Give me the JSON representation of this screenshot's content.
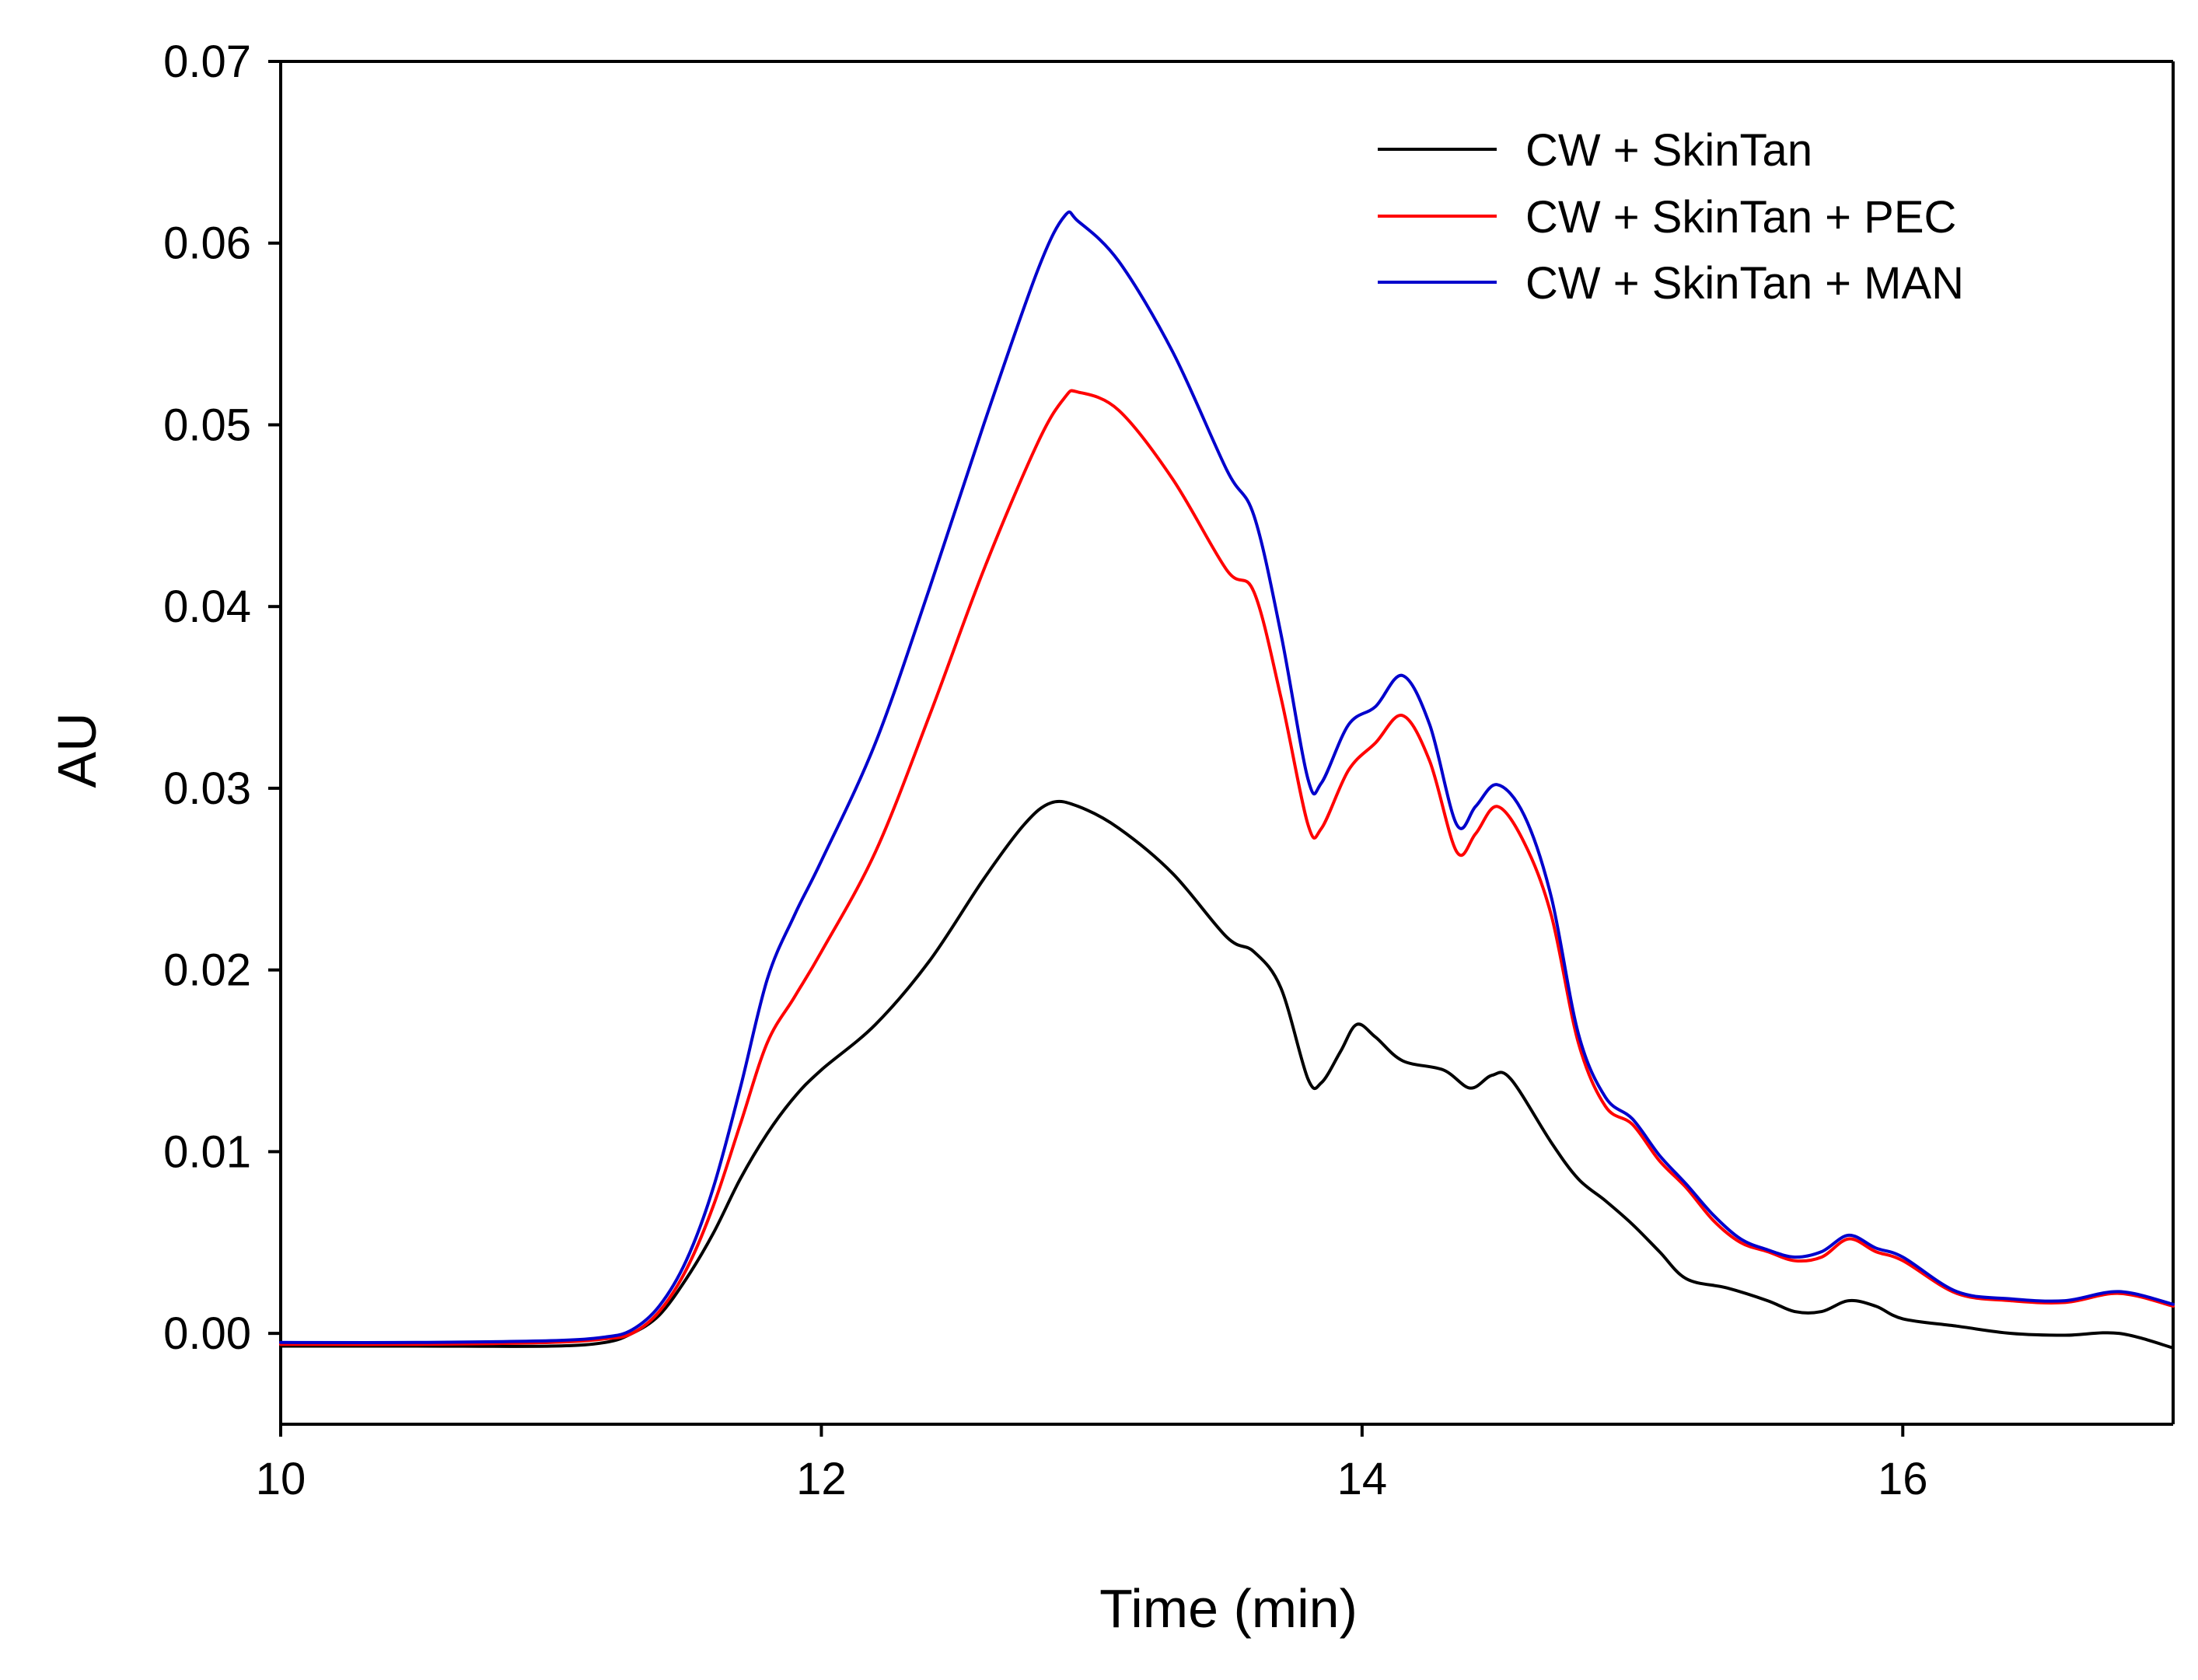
{
  "chart_data": {
    "type": "line",
    "title": "",
    "xlabel": "Time (min)",
    "ylabel": "AU",
    "xlim": [
      10,
      17
    ],
    "ylim": [
      -0.005,
      0.07
    ],
    "xticks": [
      10,
      12,
      14,
      16
    ],
    "xtick_labels": [
      "10",
      "12",
      "14",
      "16"
    ],
    "yticks": [
      0,
      0.01,
      0.02,
      0.03,
      0.04,
      0.05,
      0.06,
      0.07
    ],
    "ytick_labels": [
      "0.00",
      "0.01",
      "0.02",
      "0.03",
      "0.04",
      "0.05",
      "0.06",
      "0.07"
    ],
    "grid": false,
    "legend_position": "top-right",
    "series": [
      {
        "name": "CW + SkinTan",
        "color": "#000000",
        "points": [
          [
            10,
            -0.0007
          ],
          [
            10.5,
            -0.0007
          ],
          [
            11,
            -0.0007
          ],
          [
            11.2,
            -0.0005
          ],
          [
            11.3,
            0.0
          ],
          [
            11.4,
            0.001
          ],
          [
            11.5,
            0.003
          ],
          [
            11.6,
            0.0055
          ],
          [
            11.7,
            0.0085
          ],
          [
            11.8,
            0.011
          ],
          [
            11.9,
            0.013
          ],
          [
            12.0,
            0.0145
          ],
          [
            12.2,
            0.017
          ],
          [
            12.4,
            0.0205
          ],
          [
            12.6,
            0.025
          ],
          [
            12.75,
            0.028
          ],
          [
            12.85,
            0.0292
          ],
          [
            12.95,
            0.029
          ],
          [
            13.1,
            0.0278
          ],
          [
            13.3,
            0.0253
          ],
          [
            13.5,
            0.0218
          ],
          [
            13.6,
            0.021
          ],
          [
            13.7,
            0.019
          ],
          [
            13.8,
            0.014
          ],
          [
            13.85,
            0.0138
          ],
          [
            13.92,
            0.0155
          ],
          [
            13.98,
            0.017
          ],
          [
            14.05,
            0.0163
          ],
          [
            14.15,
            0.015
          ],
          [
            14.3,
            0.0145
          ],
          [
            14.4,
            0.0135
          ],
          [
            14.48,
            0.0142
          ],
          [
            14.55,
            0.014
          ],
          [
            14.7,
            0.0105
          ],
          [
            14.8,
            0.0085
          ],
          [
            14.9,
            0.0073
          ],
          [
            15.0,
            0.006
          ],
          [
            15.1,
            0.0045
          ],
          [
            15.2,
            0.003
          ],
          [
            15.35,
            0.0025
          ],
          [
            15.5,
            0.0018
          ],
          [
            15.6,
            0.0012
          ],
          [
            15.7,
            0.0012
          ],
          [
            15.8,
            0.0018
          ],
          [
            15.9,
            0.0015
          ],
          [
            16.0,
            0.0008
          ],
          [
            16.2,
            0.0004
          ],
          [
            16.4,
            0.0
          ],
          [
            16.6,
            -0.0001
          ],
          [
            16.8,
            0.0
          ],
          [
            17.0,
            -0.0008
          ]
        ]
      },
      {
        "name": "CW + SkinTan + PEC",
        "color": "#ff0000",
        "points": [
          [
            10,
            -0.0006
          ],
          [
            10.5,
            -0.0006
          ],
          [
            11,
            -0.0005
          ],
          [
            11.2,
            -0.0003
          ],
          [
            11.3,
            0.0
          ],
          [
            11.4,
            0.0012
          ],
          [
            11.5,
            0.0035
          ],
          [
            11.6,
            0.007
          ],
          [
            11.7,
            0.0115
          ],
          [
            11.8,
            0.016
          ],
          [
            11.9,
            0.0185
          ],
          [
            12.0,
            0.021
          ],
          [
            12.2,
            0.0265
          ],
          [
            12.4,
            0.034
          ],
          [
            12.6,
            0.042
          ],
          [
            12.8,
            0.049
          ],
          [
            12.9,
            0.0515
          ],
          [
            12.95,
            0.0518
          ],
          [
            13.1,
            0.0508
          ],
          [
            13.3,
            0.047
          ],
          [
            13.5,
            0.042
          ],
          [
            13.6,
            0.0408
          ],
          [
            13.7,
            0.035
          ],
          [
            13.8,
            0.028
          ],
          [
            13.85,
            0.0278
          ],
          [
            13.95,
            0.031
          ],
          [
            14.05,
            0.0325
          ],
          [
            14.15,
            0.034
          ],
          [
            14.25,
            0.0315
          ],
          [
            14.35,
            0.0265
          ],
          [
            14.42,
            0.0275
          ],
          [
            14.5,
            0.029
          ],
          [
            14.6,
            0.027
          ],
          [
            14.7,
            0.023
          ],
          [
            14.8,
            0.016
          ],
          [
            14.9,
            0.0125
          ],
          [
            15.0,
            0.0115
          ],
          [
            15.1,
            0.0095
          ],
          [
            15.2,
            0.008
          ],
          [
            15.3,
            0.0062
          ],
          [
            15.4,
            0.005
          ],
          [
            15.5,
            0.0045
          ],
          [
            15.6,
            0.004
          ],
          [
            15.7,
            0.0042
          ],
          [
            15.8,
            0.0052
          ],
          [
            15.9,
            0.0045
          ],
          [
            16.0,
            0.004
          ],
          [
            16.2,
            0.0022
          ],
          [
            16.4,
            0.0018
          ],
          [
            16.6,
            0.0017
          ],
          [
            16.8,
            0.0022
          ],
          [
            17.0,
            0.0015
          ]
        ]
      },
      {
        "name": "CW + SkinTan + MAN",
        "color": "#0000cc",
        "points": [
          [
            10,
            -0.0005
          ],
          [
            10.5,
            -0.0005
          ],
          [
            11,
            -0.0004
          ],
          [
            11.2,
            -0.0002
          ],
          [
            11.3,
            0.0002
          ],
          [
            11.4,
            0.0015
          ],
          [
            11.5,
            0.004
          ],
          [
            11.6,
            0.008
          ],
          [
            11.7,
            0.0135
          ],
          [
            11.8,
            0.0195
          ],
          [
            11.9,
            0.023
          ],
          [
            12.0,
            0.026
          ],
          [
            12.2,
            0.0325
          ],
          [
            12.4,
            0.041
          ],
          [
            12.6,
            0.05
          ],
          [
            12.8,
            0.0585
          ],
          [
            12.9,
            0.0615
          ],
          [
            12.95,
            0.0612
          ],
          [
            13.1,
            0.059
          ],
          [
            13.3,
            0.054
          ],
          [
            13.5,
            0.0475
          ],
          [
            13.6,
            0.045
          ],
          [
            13.7,
            0.0385
          ],
          [
            13.8,
            0.0305
          ],
          [
            13.85,
            0.0303
          ],
          [
            13.95,
            0.0335
          ],
          [
            14.05,
            0.0345
          ],
          [
            14.15,
            0.0362
          ],
          [
            14.25,
            0.0335
          ],
          [
            14.35,
            0.028
          ],
          [
            14.42,
            0.029
          ],
          [
            14.5,
            0.0302
          ],
          [
            14.6,
            0.0285
          ],
          [
            14.7,
            0.024
          ],
          [
            14.8,
            0.0165
          ],
          [
            14.9,
            0.013
          ],
          [
            15.0,
            0.0118
          ],
          [
            15.1,
            0.0098
          ],
          [
            15.2,
            0.0082
          ],
          [
            15.3,
            0.0065
          ],
          [
            15.4,
            0.0052
          ],
          [
            15.5,
            0.0046
          ],
          [
            15.6,
            0.0042
          ],
          [
            15.7,
            0.0045
          ],
          [
            15.8,
            0.0054
          ],
          [
            15.9,
            0.0047
          ],
          [
            16.0,
            0.0042
          ],
          [
            16.2,
            0.0023
          ],
          [
            16.4,
            0.0019
          ],
          [
            16.6,
            0.0018
          ],
          [
            16.8,
            0.0023
          ],
          [
            17.0,
            0.0016
          ]
        ]
      }
    ]
  }
}
